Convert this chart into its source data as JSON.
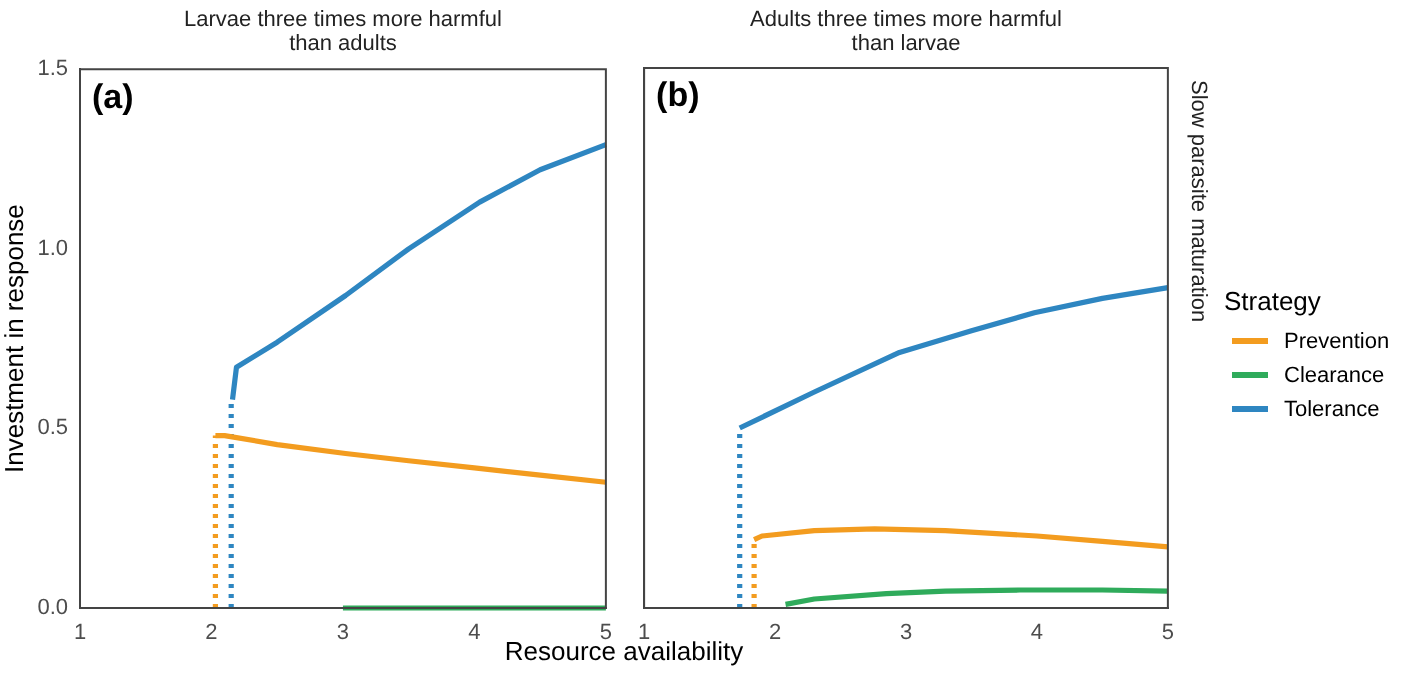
{
  "chart_data": [
    {
      "type": "line",
      "title": "Larvae three times more harmful than adults",
      "xlabel": "Resource availability",
      "ylabel": "Investment in response",
      "annotations": [
        "(a)"
      ],
      "xlim": [
        1,
        5
      ],
      "xticks": [
        1,
        2,
        3,
        4,
        5
      ],
      "ylim": [
        0,
        1.5
      ],
      "yticks": [
        {
          "value": 0,
          "label": "0.0"
        },
        {
          "value": 0.5,
          "label": "0.5"
        },
        {
          "value": 1,
          "label": "1.0"
        },
        {
          "value": 1.5,
          "label": "1.5"
        }
      ],
      "grid": false,
      "marker": "none",
      "line_style": "solid",
      "series": [
        {
          "color": "#f39c1f",
          "x": [
            2.03,
            2.1,
            2.5,
            3.02,
            3.5,
            4,
            4.5,
            5
          ],
          "values": [
            0.48,
            0.48,
            0.455,
            0.43,
            0.41,
            0.39,
            0.37,
            0.35
          ]
        },
        {
          "color": "#2fab5b",
          "x": [
            3,
            5
          ],
          "values": [
            0,
            0
          ]
        },
        {
          "color": "#2e86c1",
          "x": [
            2.16,
            2.19,
            2.5,
            3.02,
            3.5,
            4.04,
            4.5,
            5
          ],
          "values": [
            0.58,
            0.67,
            0.74,
            0.87,
            1,
            1.13,
            1.22,
            1.29
          ]
        },
        {
          "color": "#f39c1f",
          "line_style": "dotted",
          "x": [
            2.03,
            2.03
          ],
          "values": [
            0,
            0.48
          ]
        },
        {
          "color": "#2e86c1",
          "line_style": "dotted",
          "x": [
            2.15,
            2.15
          ],
          "values": [
            0,
            0.58
          ]
        }
      ]
    },
    {
      "type": "line",
      "title": "Adults three times more harmful than larvae",
      "annotations": [
        "(b)",
        "Slow parasite maturation"
      ],
      "legend_title": "Strategy",
      "xlim": [
        1,
        5
      ],
      "xticks": [
        1,
        2,
        3,
        4,
        5
      ],
      "ylim": [
        0,
        1.5
      ],
      "tick_labels": "x",
      "grid": false,
      "legend": "right",
      "marker": "none",
      "line_style": "solid",
      "series": [
        {
          "name": "Prevention",
          "color": "#f39c1f",
          "x": [
            1.84,
            1.9,
            2.3,
            2.76,
            3.3,
            4,
            4.5,
            5
          ],
          "values": [
            0.19,
            0.2,
            0.215,
            0.22,
            0.215,
            0.2,
            0.185,
            0.17
          ]
        },
        {
          "name": "Clearance",
          "color": "#2fab5b",
          "x": [
            2.08,
            2.3,
            2.85,
            3.3,
            3.87,
            4.5,
            5
          ],
          "values": [
            0.01,
            0.025,
            0.04,
            0.047,
            0.05,
            0.05,
            0.047
          ]
        },
        {
          "name": "Tolerance",
          "color": "#2e86c1",
          "x": [
            1.73,
            2.3,
            2.95,
            3.5,
            3.98,
            4.5,
            5
          ],
          "values": [
            0.5,
            0.6,
            0.71,
            0.77,
            0.82,
            0.86,
            0.89
          ]
        },
        {
          "color": "#f39c1f",
          "line_style": "dotted",
          "x": [
            1.84,
            1.84
          ],
          "values": [
            0,
            0.19
          ]
        },
        {
          "color": "#2e86c1",
          "line_style": "dotted",
          "x": [
            1.73,
            1.73
          ],
          "values": [
            0,
            0.5
          ]
        }
      ]
    }
  ]
}
